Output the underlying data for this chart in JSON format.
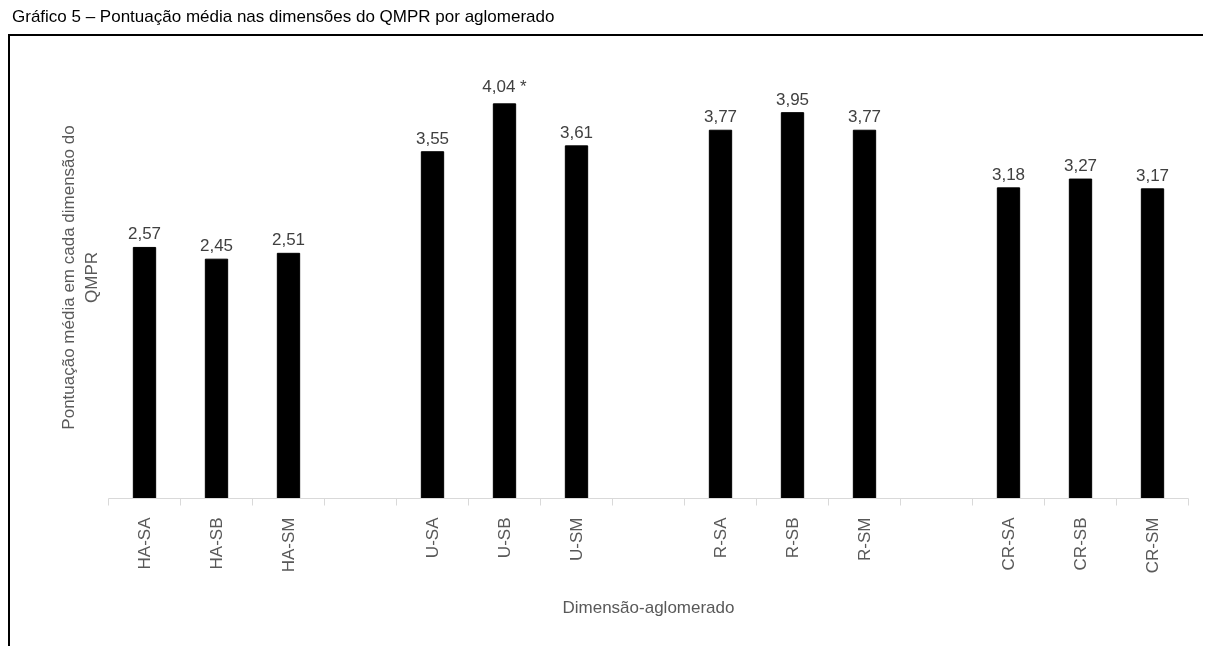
{
  "chart_data": {
    "type": "bar",
    "title": "Gráfico 5 – Pontuação média nas dimensões do QMPR por aglomerado",
    "xlabel": "Dimensão-aglomerado",
    "ylabel": "Pontuação média em cada dimensão do QMPR",
    "categories": [
      "HA-SA",
      "HA-SB",
      "HA-SM",
      null,
      "U-SA",
      "U-SB",
      "U-SM",
      null,
      "R-SA",
      "R-SB",
      "R-SM",
      null,
      "CR-SA",
      "CR-SB",
      "CR-SM"
    ],
    "values": [
      2.57,
      2.45,
      2.51,
      null,
      3.55,
      4.04,
      3.61,
      null,
      3.77,
      3.95,
      3.77,
      null,
      3.18,
      3.27,
      3.17
    ],
    "value_labels": [
      "2,57",
      "2,45",
      "2,51",
      null,
      "3,55",
      "4,04 *",
      "3,61",
      null,
      "3,77",
      "3,95",
      "3,77",
      null,
      "3,18",
      "3,27",
      "3,17"
    ],
    "color": "#000000",
    "tick_labels": "x"
  }
}
